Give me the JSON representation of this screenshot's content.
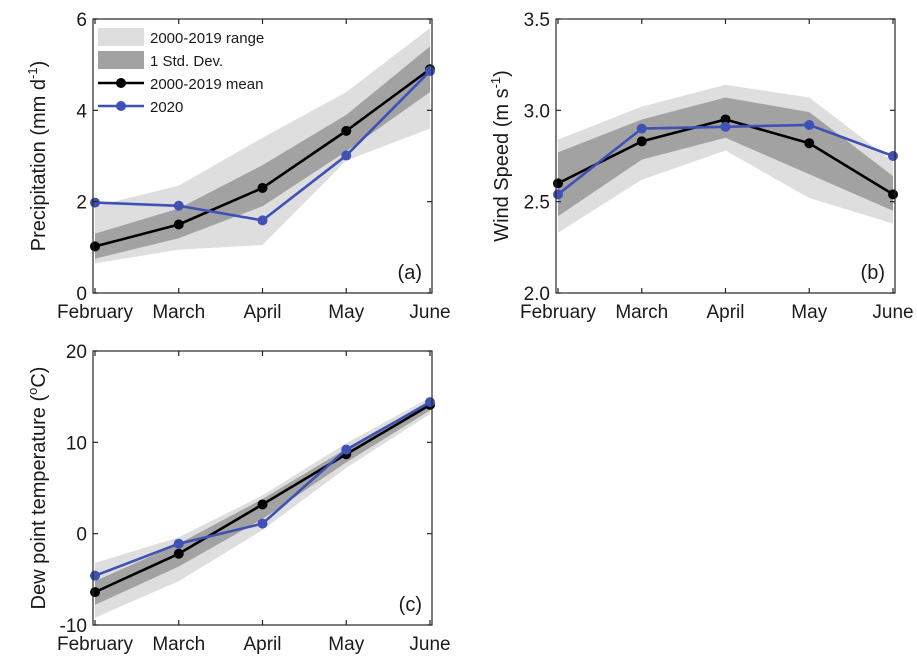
{
  "legend": [
    {
      "label": "2000-2019 range",
      "kind": "range",
      "color": "#dedede"
    },
    {
      "label": "1 Std. Dev.",
      "kind": "std",
      "color": "#a2a2a2"
    },
    {
      "label": "2000-2019 mean",
      "kind": "mean",
      "color": "#000000"
    },
    {
      "label": "2020",
      "kind": "y2020",
      "color": "#3f51b5"
    }
  ],
  "chart_data": [
    {
      "type": "line",
      "panel_label": "(a)",
      "categories": [
        "February",
        "March",
        "April",
        "May",
        "June"
      ],
      "ylabel": "Precipitation (mm d",
      "ylabel_sup": "-1",
      "ylabel_end": ")",
      "ylim": [
        0,
        6
      ],
      "yticks": [
        0,
        2,
        4,
        6
      ],
      "ytick_labels": [
        "0",
        "2",
        "4",
        "6"
      ],
      "legend": true,
      "range": {
        "low": [
          0.65,
          0.95,
          1.05,
          2.9,
          3.6
        ],
        "high": [
          1.9,
          2.35,
          3.4,
          4.4,
          5.8
        ]
      },
      "std": {
        "low": [
          0.75,
          1.2,
          1.9,
          3.1,
          4.4
        ],
        "high": [
          1.3,
          1.85,
          2.8,
          3.9,
          5.4
        ]
      },
      "series": [
        {
          "name": "2000-2019 mean",
          "values": [
            1.02,
            1.5,
            2.3,
            3.55,
            4.9
          ]
        },
        {
          "name": "2020",
          "values": [
            1.98,
            1.91,
            1.59,
            3.01,
            4.86
          ]
        }
      ]
    },
    {
      "type": "line",
      "panel_label": "(b)",
      "categories": [
        "February",
        "March",
        "April",
        "May",
        "June"
      ],
      "ylabel": "Wind Speed (m s",
      "ylabel_sup": "-1",
      "ylabel_end": ")",
      "ylim": [
        2.0,
        3.5
      ],
      "yticks": [
        2.0,
        2.5,
        3.0,
        3.5
      ],
      "ytick_labels": [
        "2.0",
        "2.5",
        "3.0",
        "3.5"
      ],
      "legend": false,
      "range": {
        "low": [
          2.33,
          2.62,
          2.78,
          2.52,
          2.38
        ],
        "high": [
          2.84,
          3.02,
          3.14,
          3.07,
          2.72
        ]
      },
      "std": {
        "low": [
          2.42,
          2.73,
          2.85,
          2.65,
          2.45
        ],
        "high": [
          2.77,
          2.95,
          3.07,
          2.99,
          2.64
        ]
      },
      "series": [
        {
          "name": "2000-2019 mean",
          "values": [
            2.6,
            2.83,
            2.95,
            2.82,
            2.54
          ]
        },
        {
          "name": "2020",
          "values": [
            2.54,
            2.9,
            2.91,
            2.92,
            2.75
          ]
        }
      ]
    },
    {
      "type": "line",
      "panel_label": "(c)",
      "categories": [
        "February",
        "March",
        "April",
        "May",
        "June"
      ],
      "ylabel": "Dew point temperature (",
      "ylabel_sup": "o",
      "ylabel_end": "C)",
      "ylim": [
        -10,
        20
      ],
      "yticks": [
        -10,
        0,
        10,
        20
      ],
      "ytick_labels": [
        "-10",
        "0",
        "10",
        "20"
      ],
      "legend": false,
      "range": {
        "low": [
          -9.2,
          -5.2,
          0.4,
          7.2,
          13.1
        ],
        "high": [
          -3.2,
          -0.4,
          4.2,
          9.9,
          14.9
        ]
      },
      "std": {
        "low": [
          -7.8,
          -3.6,
          1.6,
          7.8,
          13.5
        ],
        "high": [
          -5.2,
          -1.1,
          3.8,
          9.3,
          14.5
        ]
      },
      "series": [
        {
          "name": "2000-2019 mean",
          "values": [
            -6.4,
            -2.2,
            3.2,
            8.7,
            14.1
          ]
        },
        {
          "name": "2020",
          "values": [
            -4.6,
            -1.1,
            1.1,
            9.2,
            14.4
          ]
        }
      ]
    }
  ]
}
